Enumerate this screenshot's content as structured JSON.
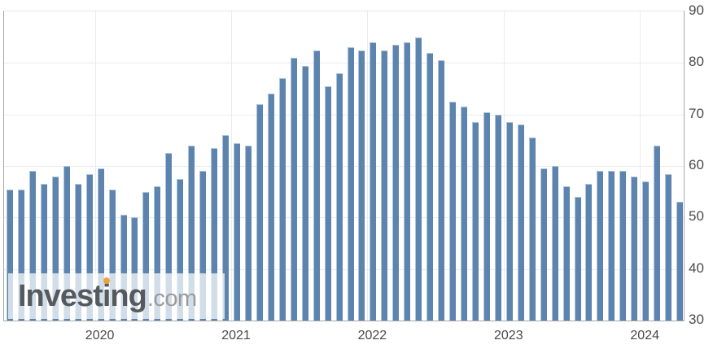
{
  "watermark": {
    "brand_prefix": "Invest",
    "brand_i": "i",
    "brand_suffix": "ng",
    "suffix": ".com",
    "dot_color": "#f0a23c"
  },
  "chart_data": {
    "type": "bar",
    "title": "",
    "xlabel": "",
    "ylabel": "",
    "x": [
      "May 2019",
      "Jun 2019",
      "Jul 2019",
      "Aug 2019",
      "Sep 2019",
      "Oct 2019",
      "Nov 2019",
      "Dec 2019",
      "Jan 2020",
      "Feb 2020",
      "Mar 2020",
      "Apr 2020",
      "May 2020",
      "Jun 2020",
      "Jul 2020",
      "Aug 2020",
      "Sep 2020",
      "Oct 2020",
      "Nov 2020",
      "Dec 2020",
      "Jan 2021",
      "Feb 2021",
      "Mar 2021",
      "Apr 2021",
      "May 2021",
      "Jun 2021",
      "Jul 2021",
      "Aug 2021",
      "Sep 2021",
      "Oct 2021",
      "Nov 2021",
      "Dec 2021",
      "Jan 2022",
      "Feb 2022",
      "Mar 2022",
      "Apr 2022",
      "May 2022",
      "Jun 2022",
      "Jul 2022",
      "Aug 2022",
      "Sep 2022",
      "Oct 2022",
      "Nov 2022",
      "Dec 2022",
      "Jan 2023",
      "Feb 2023",
      "Mar 2023",
      "Apr 2023",
      "May 2023",
      "Jun 2023",
      "Jul 2023",
      "Aug 2023",
      "Sep 2023",
      "Oct 2023",
      "Nov 2023",
      "Dec 2023",
      "Jan 2024",
      "Feb 2024",
      "Mar 2024",
      "Apr 2024"
    ],
    "values": [
      55.5,
      55.5,
      59,
      56.5,
      58,
      60,
      56.5,
      58.5,
      59.5,
      55.5,
      50.5,
      50,
      55,
      56,
      62.5,
      57.5,
      64,
      59,
      63.5,
      66,
      64.5,
      64,
      72,
      74,
      77,
      81,
      79.5,
      82.5,
      75.5,
      78,
      83,
      82.5,
      84,
      82.5,
      83.5,
      84,
      85,
      82,
      80.5,
      72.5,
      71.5,
      68.5,
      70.5,
      70,
      68.5,
      68,
      65.5,
      59.5,
      60,
      56,
      54,
      56.5,
      59,
      59,
      59,
      58,
      57,
      64,
      58.5,
      53
    ],
    "ylim": [
      30,
      90
    ],
    "yticks": [
      90,
      80,
      70,
      60,
      50,
      40,
      30
    ],
    "xtick_labels": [
      "2020",
      "2021",
      "2022",
      "2023",
      "2024"
    ],
    "xtick_month_indices": [
      8,
      20,
      32,
      44,
      56
    ],
    "grid": true,
    "legend": false,
    "y_axis_side": "right",
    "colors": {
      "bar_fill": "#5c84ae",
      "bar_edge": "#aec5db",
      "gridline": "#ebebeb",
      "axis_line": "#a8a8a8",
      "tick_label": "#4a4a4a"
    }
  }
}
